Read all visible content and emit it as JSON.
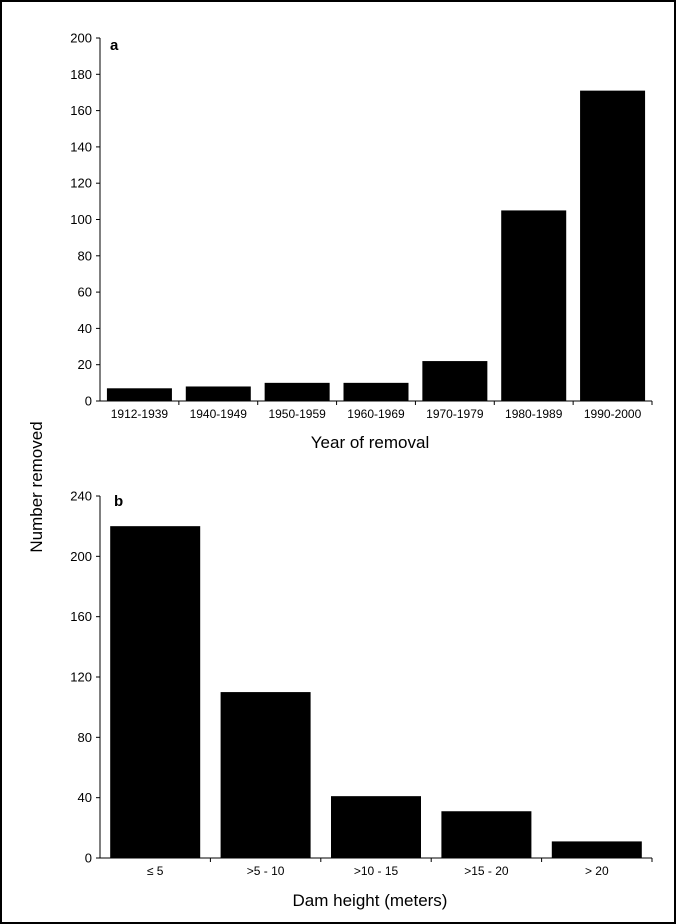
{
  "figure": {
    "shared_ylabel": "Number removed"
  },
  "chart_data": [
    {
      "type": "bar",
      "panel_label": "a",
      "title": "",
      "xlabel": "Year of removal",
      "ylabel": "Number removed",
      "ylim": [
        0,
        200
      ],
      "yticks": [
        0,
        20,
        40,
        60,
        80,
        100,
        120,
        140,
        160,
        180,
        200
      ],
      "categories": [
        "1912-1939",
        "1940-1949",
        "1950-1959",
        "1960-1969",
        "1970-1979",
        "1980-1989",
        "1990-2000"
      ],
      "values": [
        7,
        8,
        10,
        10,
        22,
        105,
        171
      ],
      "bar_color": "#000000",
      "grid": false,
      "legend": "none"
    },
    {
      "type": "bar",
      "panel_label": "b",
      "title": "",
      "xlabel": "Dam height (meters)",
      "ylabel": "Number removed",
      "ylim": [
        0,
        240
      ],
      "yticks": [
        0,
        40,
        80,
        120,
        160,
        200,
        240
      ],
      "categories": [
        "≤ 5",
        ">5 - 10",
        ">10 - 15",
        ">15 - 20",
        "> 20"
      ],
      "values": [
        220,
        110,
        41,
        31,
        11
      ],
      "bar_color": "#000000",
      "grid": false,
      "legend": "none"
    }
  ]
}
